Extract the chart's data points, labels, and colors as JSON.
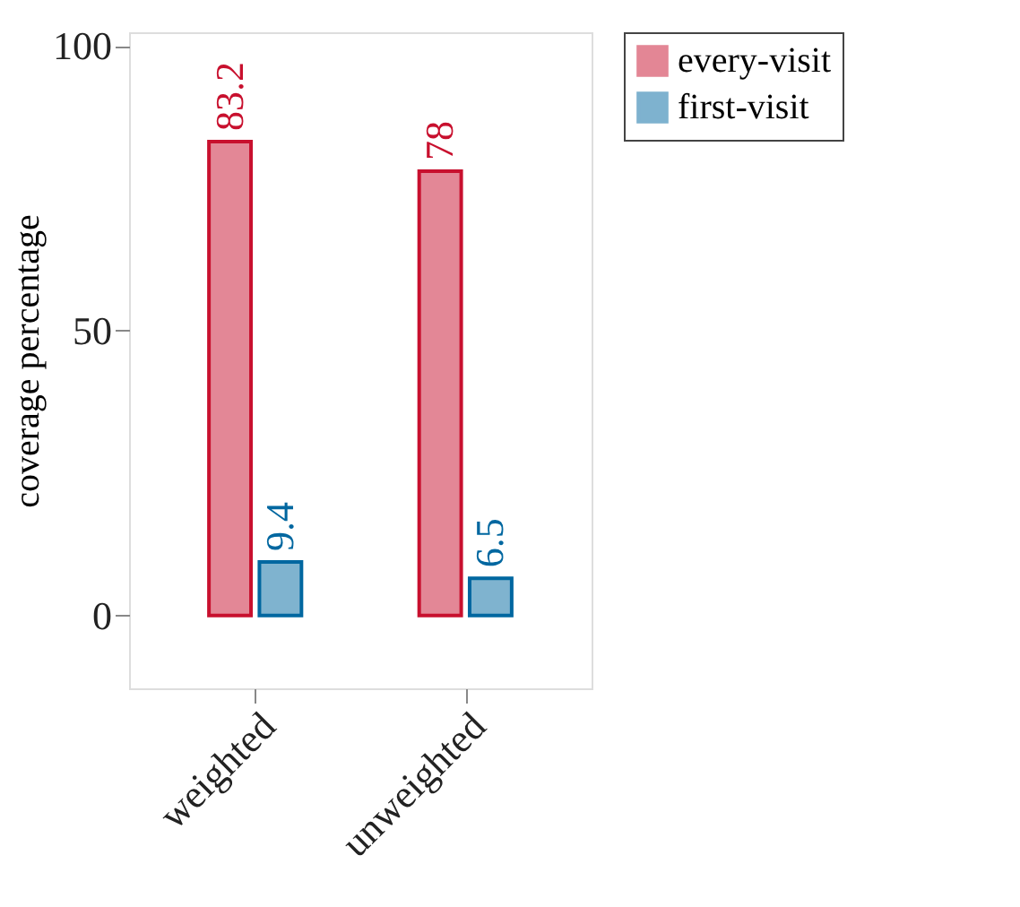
{
  "chart_data": {
    "type": "bar",
    "ylabel": "coverage percentage",
    "categories": [
      "weighted",
      "unweighted"
    ],
    "series": [
      {
        "name": "every-visit",
        "color": "#c8102e",
        "values": [
          83.2,
          78
        ]
      },
      {
        "name": "first-visit",
        "color": "#0067a0",
        "values": [
          9.4,
          6.5
        ]
      }
    ],
    "ylim": [
      -12.8,
      102.4
    ],
    "yticks": [
      0,
      50,
      100
    ],
    "data_labels": true,
    "legend": "right",
    "grid": false
  }
}
